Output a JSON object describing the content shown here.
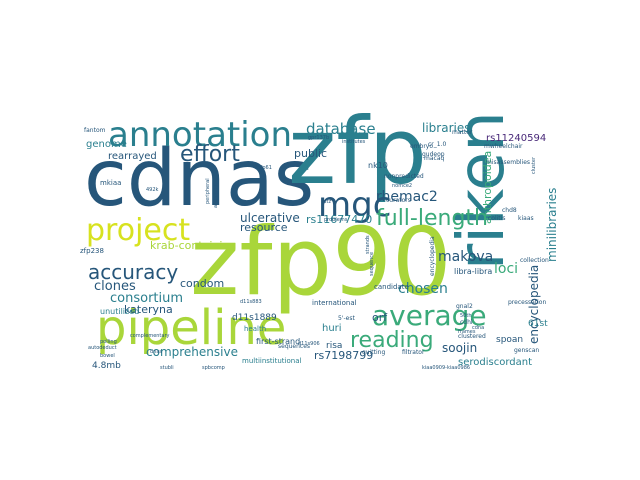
{
  "palette": {
    "dark_blue": "#26567a",
    "teal": "#2a7f8e",
    "green": "#3aaa7a",
    "lime": "#a9d63a",
    "yellow": "#d7e21f",
    "purple": "#482878",
    "navy": "#3b528b"
  },
  "words": {
    "zfp90": "zfp90",
    "cdnas": "cdnas",
    "zfp": "zfp",
    "riken": "riken",
    "pipeline": "pipeline",
    "annotation": "annotation",
    "mgc": "mgc",
    "project": "project",
    "effort": "effort",
    "average": "average",
    "full_length": "full-length",
    "accuracy": "accuracy",
    "reading": "reading",
    "database": "database",
    "libraries": "libraries",
    "rs11240594": "rs11240594",
    "encyclopedia": "encyclopedia",
    "minilibraries": "minilibraries",
    "anthropoidea": "anthropoidea",
    "makova": "makova",
    "rhemac2": "rhemac2",
    "loci": "loci",
    "consortium": "consortium",
    "clones": "clones",
    "condom": "condom",
    "comprehensive": "comprehensive",
    "kateryna": "kateryna",
    "chosen": "chosen",
    "soojin": "soojin",
    "rs7198799": "rs7198799",
    "rs11677470": "rs11677470",
    "ulcerative": "ulcerative",
    "resource": "resource",
    "krab_containing": "krab-containing",
    "genome": "genome",
    "rearrayed": "rearrayed",
    "public": "public",
    "serodiscordant": "serodiscordant",
    "spoan": "spoan",
    "61st": "61st",
    "d11s1889": "d11s1889",
    "orf": "orf",
    "huri": "huri",
    "risa": "risa",
    "unutilized": "unutilized",
    "mb4_8": "4.8mb",
    "zfp238": "zfp238",
    "mkiaa": "mkiaa",
    "candidate": "candidate",
    "first_strand": "first-strand",
    "multiinstitutional": "multiinstitutional",
    "international": "international",
    "sequences": "sequences",
    "fantom": "fantom",
    "collection": "collection",
    "precessation": "precessation",
    "genscan": "genscan",
    "fil_clustered": "clustered",
    "filtrator": "filtrator",
    "quitting": "quitting",
    "health": "health",
    "nk10": "nk10",
    "nonpredicted": "nonpredicted",
    "curators": "curators",
    "mwheelchair": "mwheelchair",
    "misassemblies": "misassemblies",
    "reorder_gudeop": "gudeop",
    "cr_1_0": "cr_1.0",
    "macaq": "macaq",
    "embryo": "embryo",
    "chd8": "chd8",
    "kiaas": "kiaas",
    "colitis": "colitis",
    "gnal2": "gnal2",
    "encyclopedia2": "encyclopedia",
    "cdhl": "cdhl",
    "kiaa0986": "kiaa0909-kiaa0986",
    "rs_ws": "5'-est",
    "d11s906": "d11s906",
    "d11s883": "d11s883",
    "zfp61": "zfp61",
    "peripheral": "peripheral",
    "alignments": "alignments",
    "gpr137b": "gpr137b",
    "institutes": "institutes",
    "matter": "matter",
    "m50": "m50",
    "d11s": "d11s883",
    "libra_libra": "libra-libra",
    "colitis2": "colitis",
    "kiaa_small": "kiaa",
    "complementary": "complementary",
    "dnas": "dnas",
    "polling": "polling",
    "bowel": "bowel",
    "autodeduct": "autodeduct",
    "cdna": "cdna",
    "50th": "50th",
    "strands": "strands",
    "lutz": "lutz",
    "sequence": "sequence",
    "problems": "problems",
    "nomce2": "nomce2",
    "sdonor": "sdonor",
    "492k": "492k",
    "stubli": "stubli",
    "sphcomp": "spbcomp",
    "cluster": "cluster",
    "frames": "frames"
  }
}
